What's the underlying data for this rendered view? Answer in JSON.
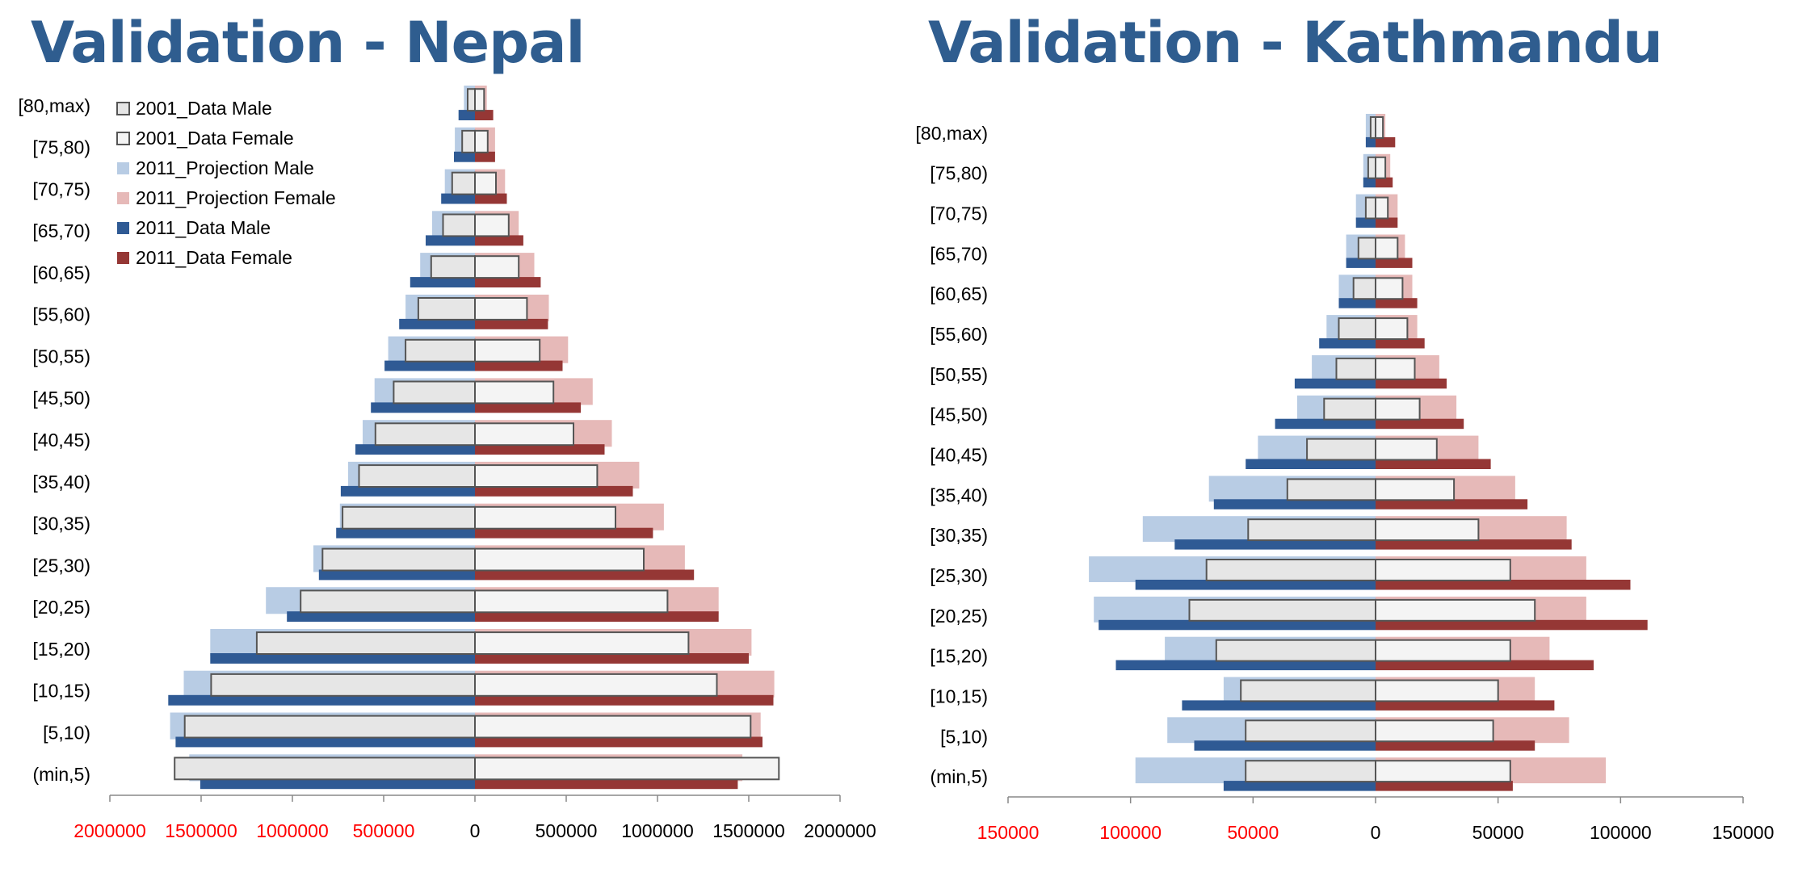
{
  "colors": {
    "title": "#2f5d8f",
    "data2001_male": "#e6e6e6",
    "data2001_female": "#f4f4f4",
    "proj2011_male": "#b8cce4",
    "proj2011_female": "#e6b9b8",
    "data2011_male": "#2f5a94",
    "data2011_female": "#953735",
    "neg_tick_label": "#ff0000"
  },
  "chart_data": [
    {
      "type": "bar",
      "title": "Validation - Nepal",
      "orientation": "horizontal-population-pyramid",
      "categories": [
        "(min,5)",
        "[5,10)",
        "[10,15)",
        "[15,20)",
        "[20,25)",
        "[25,30)",
        "[30,35)",
        "[35,40)",
        "[40,45)",
        "[45,50)",
        "[50,55)",
        "[55,60)",
        "[60,65)",
        "[65,70)",
        "[70,75)",
        "[75,80)",
        "[80,max)"
      ],
      "xlim": [
        -2000000,
        2000000
      ],
      "xticks": [
        -2000000,
        -1500000,
        -1000000,
        -500000,
        0,
        500000,
        1000000,
        1500000,
        2000000
      ],
      "xtick_labels": [
        "2000000",
        "1500000",
        "1000000",
        "500000",
        "0",
        "500000",
        "1000000",
        "1500000",
        "2000000"
      ],
      "legend": {
        "position": "top-left",
        "entries": [
          "2001_Data Male",
          "2001_Data Female",
          "2011_Projection Male",
          "2011_Projection Female",
          "2011_Data Male",
          "2011_Data Female"
        ]
      },
      "series": [
        {
          "name": "2001_Data Male",
          "side": "male",
          "values": [
            1645000,
            1590000,
            1445000,
            1195000,
            955000,
            835000,
            725000,
            635000,
            545000,
            445000,
            380000,
            310000,
            240000,
            175000,
            125000,
            70000,
            40000
          ]
        },
        {
          "name": "2001_Data Female",
          "side": "female",
          "values": [
            1665000,
            1510000,
            1325000,
            1170000,
            1055000,
            925000,
            770000,
            670000,
            540000,
            430000,
            355000,
            285000,
            240000,
            185000,
            115000,
            70000,
            50000
          ]
        },
        {
          "name": "2011_Projection Male",
          "side": "male",
          "values": [
            1565000,
            1670000,
            1595000,
            1450000,
            1145000,
            885000,
            740000,
            695000,
            615000,
            550000,
            475000,
            380000,
            300000,
            235000,
            165000,
            110000,
            60000
          ]
        },
        {
          "name": "2011_Projection Female",
          "side": "female",
          "values": [
            1465000,
            1565000,
            1640000,
            1515000,
            1335000,
            1150000,
            1035000,
            900000,
            750000,
            645000,
            510000,
            405000,
            325000,
            240000,
            165000,
            110000,
            65000
          ]
        },
        {
          "name": "2011_Data Male",
          "side": "male",
          "values": [
            1505000,
            1640000,
            1680000,
            1450000,
            1030000,
            855000,
            760000,
            735000,
            655000,
            570000,
            495000,
            415000,
            355000,
            270000,
            185000,
            115000,
            90000
          ]
        },
        {
          "name": "2011_Data Female",
          "side": "female",
          "values": [
            1440000,
            1575000,
            1635000,
            1500000,
            1335000,
            1200000,
            975000,
            865000,
            710000,
            580000,
            480000,
            400000,
            360000,
            265000,
            175000,
            110000,
            100000
          ]
        }
      ]
    },
    {
      "type": "bar",
      "title": "Validation - Kathmandu",
      "orientation": "horizontal-population-pyramid",
      "categories": [
        "(min,5)",
        "[5,10)",
        "[10,15)",
        "[15,20)",
        "[20,25)",
        "[25,30)",
        "[30,35)",
        "[35,40)",
        "[40,45)",
        "[45,50)",
        "[50,55)",
        "[55,60)",
        "[60,65)",
        "[65,70)",
        "[70,75)",
        "[75,80)",
        "[80,max)"
      ],
      "xlim": [
        -150000,
        150000
      ],
      "xticks": [
        -150000,
        -100000,
        -50000,
        0,
        50000,
        100000,
        150000
      ],
      "xtick_labels": [
        "150000",
        "100000",
        "50000",
        "0",
        "50000",
        "100000",
        "150000"
      ],
      "series": [
        {
          "name": "2001_Data Male",
          "side": "male",
          "values": [
            53000,
            53000,
            55000,
            65000,
            76000,
            69000,
            52000,
            36000,
            28000,
            21000,
            16000,
            15000,
            9000,
            7000,
            4000,
            3000,
            2000
          ]
        },
        {
          "name": "2001_Data Female",
          "side": "female",
          "values": [
            55000,
            48000,
            50000,
            55000,
            65000,
            55000,
            42000,
            32000,
            25000,
            18000,
            16000,
            13000,
            11000,
            9000,
            5000,
            4000,
            3000
          ]
        },
        {
          "name": "2011_Projection Male",
          "side": "male",
          "values": [
            98000,
            85000,
            62000,
            86000,
            115000,
            117000,
            95000,
            68000,
            48000,
            32000,
            26000,
            20000,
            15000,
            12000,
            8000,
            5000,
            4000
          ]
        },
        {
          "name": "2011_Projection Female",
          "side": "female",
          "values": [
            94000,
            79000,
            65000,
            71000,
            86000,
            86000,
            78000,
            57000,
            42000,
            33000,
            26000,
            17000,
            15000,
            12000,
            9000,
            6000,
            4000
          ]
        },
        {
          "name": "2011_Data Male",
          "side": "male",
          "values": [
            62000,
            74000,
            79000,
            106000,
            113000,
            98000,
            82000,
            66000,
            53000,
            41000,
            33000,
            23000,
            15000,
            12000,
            8000,
            5000,
            4000
          ]
        },
        {
          "name": "2011_Data Female",
          "side": "female",
          "values": [
            56000,
            65000,
            73000,
            89000,
            111000,
            104000,
            80000,
            62000,
            47000,
            36000,
            29000,
            20000,
            17000,
            15000,
            9000,
            7000,
            8000
          ]
        }
      ]
    }
  ]
}
